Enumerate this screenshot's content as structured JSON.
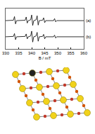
{
  "chart_data": {
    "type": "line",
    "x_label": "B / mT",
    "xlim": [
      330,
      360
    ],
    "xticks": [
      330,
      335,
      340,
      345,
      350,
      355,
      360
    ],
    "ylim": [
      0,
      10
    ],
    "yticks": [],
    "tick_labels": "x",
    "grid": false,
    "series": [
      {
        "name": "(a)",
        "color": "#000000",
        "x": [
          330,
          332,
          333,
          333.4,
          333.8,
          334.2,
          336,
          337.5,
          337.9,
          338.3,
          338.7,
          339.6,
          340.0,
          340.4,
          340.8,
          341.7,
          342.1,
          342.5,
          342.9,
          344.2,
          344.6,
          345.0,
          345.4,
          348.4,
          348.8,
          349.2,
          349.6,
          352,
          360
        ],
        "values": [
          7,
          7,
          7.1,
          8.0,
          6.2,
          7,
          7,
          7.1,
          7.9,
          6.4,
          7,
          7.2,
          8.4,
          5.8,
          7,
          7.2,
          8.2,
          5.9,
          7,
          7.1,
          7.7,
          6.5,
          7,
          7,
          7.5,
          6.7,
          7,
          7,
          7
        ]
      },
      {
        "name": "(b)",
        "color": "#000000",
        "x": [
          330,
          332,
          333,
          333.4,
          333.8,
          334.2,
          336,
          337.5,
          337.9,
          338.3,
          338.7,
          339.6,
          340.0,
          340.4,
          340.8,
          341.7,
          342.1,
          342.5,
          342.9,
          344.2,
          344.6,
          345.0,
          345.4,
          348.4,
          348.8,
          349.2,
          349.6,
          352,
          360
        ],
        "values": [
          3,
          3,
          3.1,
          3.8,
          2.3,
          3,
          3,
          3.1,
          3.7,
          2.5,
          3,
          3.2,
          4.4,
          1.7,
          3,
          3.2,
          4.1,
          1.9,
          3,
          3.1,
          3.6,
          2.5,
          3,
          3,
          3.4,
          2.7,
          3,
          3,
          3
        ]
      }
    ]
  }
}
